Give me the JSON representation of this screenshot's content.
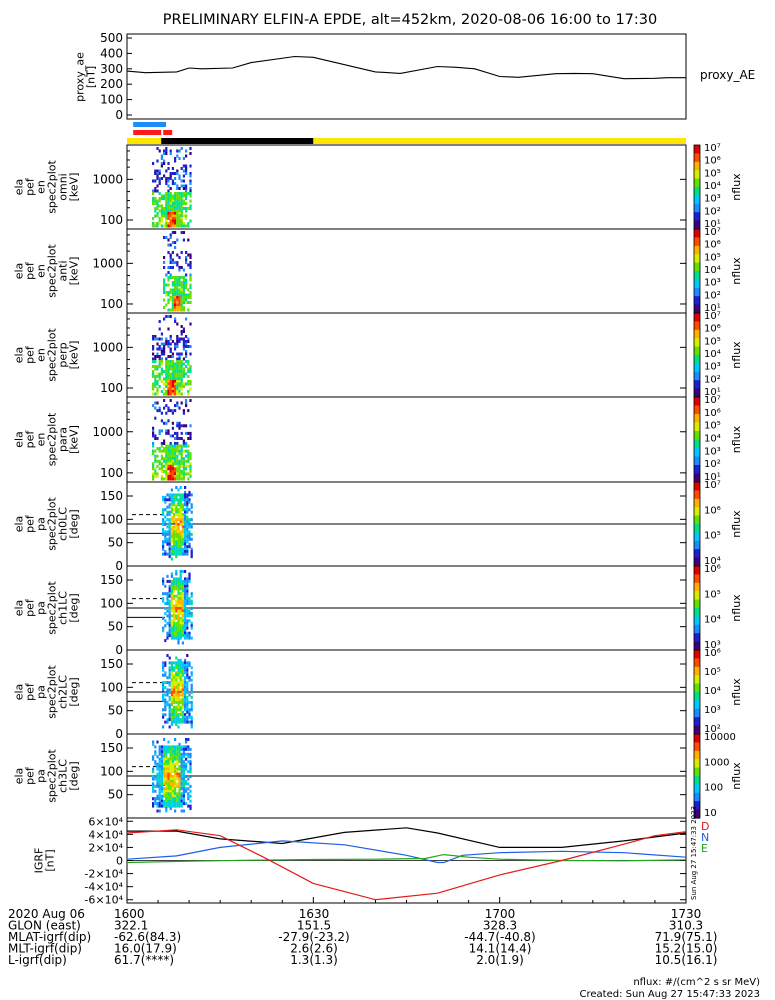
{
  "title": "PRELIMINARY ELFIN-A EPDE, alt=452km, 2020-08-06 16:00 to 17:30",
  "colors": {
    "black": "#000000",
    "blue": "#1e5ee6",
    "red": "#e41a1a",
    "green": "#1fa51f",
    "yellow": "#ffe600",
    "bar_blue": "#1a8cff",
    "bar_red": "#ff1a1a"
  },
  "chart_data": [
    {
      "id": "proxy_ae",
      "type": "line",
      "ylabel_lines": [
        "proxy_ae",
        "[nT]"
      ],
      "legend": "proxy_AE",
      "ylim": [
        0,
        500
      ],
      "yticks": [
        "0",
        "100",
        "200",
        "300",
        "400",
        "500"
      ],
      "xlim": [
        0,
        90
      ],
      "x": [
        0,
        3,
        8,
        10,
        12,
        17,
        20,
        27,
        30,
        40,
        44,
        50,
        53,
        56,
        60,
        63,
        69,
        72,
        75,
        80,
        85,
        87,
        90
      ],
      "values": [
        285,
        275,
        280,
        305,
        300,
        305,
        340,
        380,
        375,
        280,
        270,
        315,
        310,
        300,
        250,
        245,
        268,
        270,
        268,
        236,
        238,
        242,
        242
      ]
    },
    {
      "id": "status_bars",
      "type": "bar",
      "bars": [
        {
          "label": "blue",
          "x0": 1,
          "x1": 5
        },
        {
          "label": "red",
          "x0": 1,
          "x1": 5
        }
      ],
      "orbit": [
        {
          "state": "sun",
          "x0": -3,
          "x1": 5.5
        },
        {
          "state": "shadow",
          "x0": 5.5,
          "x1": 30
        },
        {
          "state": "sun",
          "x0": 30,
          "x1": 90
        }
      ]
    },
    {
      "id": "en_omni",
      "type": "heatmap",
      "ylabel_lines": [
        "ela",
        "pef",
        "en",
        "spec2plot",
        "omni",
        "[keV]"
      ],
      "ylim": [
        60,
        7000
      ],
      "ylog": true,
      "yticks": [
        "100",
        "1000"
      ],
      "ztitle": "nflux",
      "zticks": [
        "10⁷",
        "10⁶",
        "10⁵",
        "10⁴",
        "10³",
        "10²",
        "10¹"
      ]
    },
    {
      "id": "en_anti",
      "type": "heatmap",
      "ylabel_lines": [
        "ela",
        "pef",
        "en",
        "spec2plot",
        "anti",
        "[keV]"
      ],
      "ylim": [
        60,
        7000
      ],
      "ylog": true,
      "yticks": [
        "100",
        "1000"
      ],
      "ztitle": "nflux",
      "zticks": [
        "10⁷",
        "10⁶",
        "10⁵",
        "10⁴",
        "10³",
        "10²",
        "10¹"
      ]
    },
    {
      "id": "en_perp",
      "type": "heatmap",
      "ylabel_lines": [
        "ela",
        "pef",
        "en",
        "spec2plot",
        "perp",
        "[keV]"
      ],
      "ylim": [
        60,
        7000
      ],
      "ylog": true,
      "yticks": [
        "100",
        "1000"
      ],
      "ztitle": "nflux",
      "zticks": [
        "10⁷",
        "10⁶",
        "10⁵",
        "10⁴",
        "10³",
        "10²",
        "10¹"
      ]
    },
    {
      "id": "en_para",
      "type": "heatmap",
      "ylabel_lines": [
        "ela",
        "pef",
        "en",
        "spec2plot",
        "para",
        "[keV]"
      ],
      "ylim": [
        60,
        7000
      ],
      "ylog": true,
      "yticks": [
        "100",
        "1000"
      ],
      "ztitle": "nflux",
      "zticks": [
        "10⁷",
        "10⁶",
        "10⁵",
        "10⁴",
        "10³",
        "10²",
        "10¹"
      ]
    },
    {
      "id": "pa_ch0",
      "type": "heatmap",
      "ylabel_lines": [
        "ela",
        "pef",
        "pa",
        "spec2plot",
        "ch0LC",
        "[deg]"
      ],
      "ylim": [
        0,
        180
      ],
      "yticks": [
        "0",
        "50",
        "100",
        "150"
      ],
      "ztitle": "nflux",
      "zticks": [
        "10⁷",
        "10⁶",
        "10⁵",
        "10⁴"
      ]
    },
    {
      "id": "pa_ch1",
      "type": "heatmap",
      "ylabel_lines": [
        "ela",
        "pef",
        "pa",
        "spec2plot",
        "ch1LC",
        "[deg]"
      ],
      "ylim": [
        0,
        180
      ],
      "yticks": [
        "0",
        "50",
        "100",
        "150"
      ],
      "ztitle": "nflux",
      "zticks": [
        "10⁶",
        "10⁵",
        "10⁴",
        "10³"
      ]
    },
    {
      "id": "pa_ch2",
      "type": "heatmap",
      "ylabel_lines": [
        "ela",
        "pef",
        "pa",
        "spec2plot",
        "ch2LC",
        "[deg]"
      ],
      "ylim": [
        0,
        180
      ],
      "yticks": [
        "0",
        "50",
        "100",
        "150"
      ],
      "ztitle": "nflux",
      "zticks": [
        "10⁶",
        "10⁵",
        "10⁴",
        "10³",
        "10²"
      ]
    },
    {
      "id": "pa_ch3",
      "type": "heatmap",
      "ylabel_lines": [
        "ela",
        "pef",
        "pa",
        "spec2plot",
        "ch3LC",
        "[deg]"
      ],
      "ylim": [
        0,
        180
      ],
      "yticks": [
        "50",
        "100",
        "150"
      ],
      "ztitle": "nflux",
      "zticks": [
        "10000",
        "1000",
        "100",
        "10"
      ]
    },
    {
      "id": "igrf",
      "type": "line",
      "ylabel_lines": [
        "IGRF",
        "[nT]"
      ],
      "ylim": [
        -65000,
        65000
      ],
      "yticks": [
        "6×10⁴",
        "4×10⁴",
        "2×10⁴",
        "0",
        "-2×10⁴",
        "-4×10⁴",
        "-6×10⁴"
      ],
      "xlim": [
        0,
        90
      ],
      "legend": [
        "D",
        "N",
        "E"
      ],
      "series": [
        {
          "name": "D",
          "color": "black",
          "x": [
            0,
            8,
            15,
            25,
            35,
            45,
            50,
            60,
            70,
            80,
            90
          ],
          "values": [
            45000,
            45000,
            33000,
            26000,
            43000,
            50000,
            42000,
            20000,
            20000,
            30000,
            42000
          ]
        },
        {
          "name": "N",
          "color": "blue",
          "x": [
            0,
            8,
            15,
            25,
            35,
            45,
            50,
            51,
            54,
            60,
            70,
            80,
            90
          ],
          "values": [
            2000,
            7000,
            20000,
            30000,
            24000,
            8000,
            -3000,
            -3000,
            8000,
            12000,
            14000,
            12000,
            5000
          ]
        },
        {
          "name": "E",
          "color": "green",
          "x": [
            0,
            10,
            20,
            30,
            40,
            48,
            51,
            55,
            60,
            70,
            80,
            90
          ],
          "values": [
            -3000,
            -1000,
            500,
            1500,
            2000,
            3000,
            9000,
            5000,
            2000,
            0,
            -500,
            1000
          ]
        },
        {
          "name": "",
          "color": "red",
          "x": [
            0,
            8,
            15,
            22,
            30,
            40,
            50,
            60,
            70,
            80,
            85,
            90
          ],
          "values": [
            42000,
            47000,
            38000,
            5000,
            -35000,
            -60000,
            -50000,
            -22000,
            0,
            25000,
            38000,
            44000
          ]
        }
      ]
    }
  ],
  "footer": {
    "rows": [
      {
        "label": "2020 Aug 06",
        "values": [
          "1600",
          "1630",
          "1700",
          "1730"
        ]
      },
      {
        "label": "GLON (east)",
        "values": [
          "322.1",
          "151.5",
          "328.3",
          "310.3"
        ]
      },
      {
        "label": "MLAT-igrf(dip)",
        "values": [
          "-62.6(84.3)",
          "-27.9(-23.2)",
          "-44.7(-40.8)",
          "71.9(75.1)"
        ]
      },
      {
        "label": "MLT-igrf(dip)",
        "values": [
          "16.0(17.9)",
          "2.6(2.6)",
          "14.1(14.4)",
          "15.2(15.0)"
        ]
      },
      {
        "label": "L-igrf(dip)",
        "values": [
          "61.7(****)",
          "1.3(1.3)",
          "2.0(1.9)",
          "10.5(16.1)"
        ]
      }
    ],
    "units_note": "nflux: #/(cm^2 s sr MeV)",
    "created": "Created: Sun Aug 27 15:47:33 2023",
    "side_stamp": "Sun Aug 27 15:47:33 2023"
  }
}
